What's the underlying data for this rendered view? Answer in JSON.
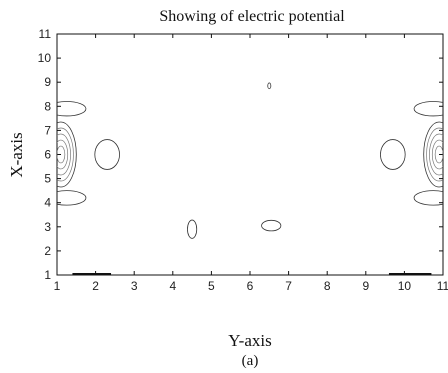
{
  "chart_data": {
    "type": "contour",
    "title": "Showing of electric potential",
    "xlabel": "Y-axis",
    "ylabel": "X-axis",
    "caption": "(a)",
    "xlim": [
      1,
      11
    ],
    "ylim": [
      1,
      11
    ],
    "xticks": [
      "1",
      "2",
      "3",
      "4",
      "5",
      "6",
      "7",
      "8",
      "9",
      "10",
      "11"
    ],
    "yticks": [
      "1",
      "2",
      "3",
      "4",
      "5",
      "6",
      "7",
      "8",
      "9",
      "10",
      "11"
    ],
    "contours": [
      {
        "name": "left-edge-core",
        "center": [
          1.1,
          6.0
        ],
        "rx": 0.4,
        "ry": [
          1.35,
          1.1,
          0.85,
          0.6,
          0.35
        ]
      },
      {
        "name": "left-lobe",
        "center": [
          2.3,
          6.0
        ],
        "rx": 0.32,
        "ry": 0.62
      },
      {
        "name": "upper-left-arc",
        "center": [
          1.25,
          7.9
        ],
        "rx": 0.5,
        "ry": 0.3
      },
      {
        "name": "lower-left-arc",
        "center": [
          1.25,
          4.2
        ],
        "rx": 0.5,
        "ry": 0.3
      },
      {
        "name": "spike-mid-left",
        "center": [
          4.5,
          2.9
        ],
        "rx": 0.12,
        "ry": 0.38
      },
      {
        "name": "blob-mid",
        "center": [
          6.55,
          3.05
        ],
        "rx": 0.25,
        "ry": 0.22
      },
      {
        "name": "dot-top",
        "center": [
          6.5,
          8.85
        ],
        "rx": 0.04,
        "ry": 0.12
      },
      {
        "name": "right-lobe",
        "center": [
          9.7,
          6.0
        ],
        "rx": 0.32,
        "ry": 0.62
      },
      {
        "name": "right-edge-core",
        "center": [
          10.9,
          6.0
        ],
        "rx": 0.4,
        "ry": [
          1.35,
          1.1,
          0.85,
          0.6,
          0.35
        ]
      },
      {
        "name": "upper-right-arc",
        "center": [
          10.75,
          7.9
        ],
        "rx": 0.5,
        "ry": 0.3
      },
      {
        "name": "lower-right-arc",
        "center": [
          10.75,
          4.2
        ],
        "rx": 0.5,
        "ry": 0.3
      }
    ],
    "base_segments": [
      {
        "x": [
          1.4,
          2.4
        ],
        "y": 1.05
      },
      {
        "x": [
          9.6,
          10.7
        ],
        "y": 1.05
      }
    ],
    "grid": false
  }
}
